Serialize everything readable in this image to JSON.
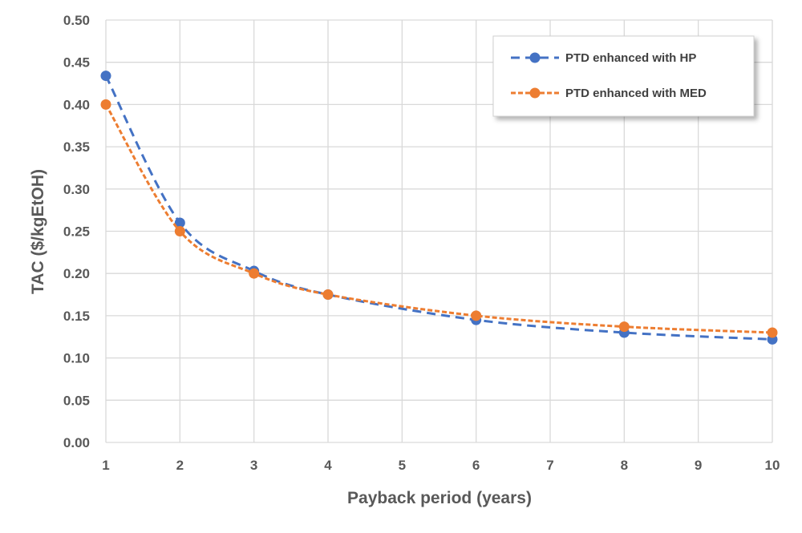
{
  "chart_data": {
    "type": "line",
    "xlabel": "Payback period (years)",
    "ylabel": "TAC ($/kgEtOH)",
    "xlim": [
      1,
      10
    ],
    "ylim": [
      0,
      0.5
    ],
    "x_ticks": [
      "1",
      "2",
      "3",
      "4",
      "5",
      "6",
      "7",
      "8",
      "9",
      "10"
    ],
    "y_ticks": [
      "0.00",
      "0.05",
      "0.10",
      "0.15",
      "0.20",
      "0.25",
      "0.30",
      "0.35",
      "0.40",
      "0.45",
      "0.50"
    ],
    "grid": true,
    "legend_position": "top-right",
    "series": [
      {
        "name": "PTD enhanced with HP",
        "color": "#4472C4",
        "line_style": "dashed",
        "marker": "circle",
        "x": [
          1,
          2,
          3,
          4,
          6,
          8,
          10
        ],
        "y": [
          0.434,
          0.26,
          0.203,
          0.175,
          0.145,
          0.13,
          0.122
        ]
      },
      {
        "name": "PTD enhanced with MED",
        "color": "#ED7D31",
        "line_style": "dotted",
        "marker": "circle",
        "x": [
          1,
          2,
          3,
          4,
          6,
          8,
          10
        ],
        "y": [
          0.4,
          0.25,
          0.2,
          0.175,
          0.15,
          0.137,
          0.13
        ]
      }
    ]
  }
}
